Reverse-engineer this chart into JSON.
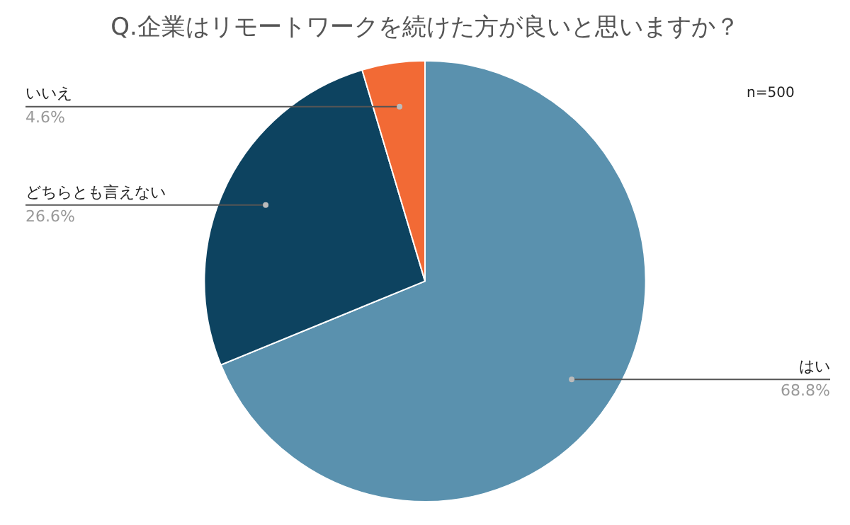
{
  "chart_data": {
    "type": "pie",
    "title": "Q.企業はリモートワークを続けた方が良いと思いますか？",
    "categories": [
      "はい",
      "どちらとも言えない",
      "いいえ"
    ],
    "values": [
      68.8,
      26.6,
      4.6
    ],
    "value_labels": [
      "68.8%",
      "26.6%",
      "4.6%"
    ],
    "colors": [
      "#5a91ae",
      "#0d4360",
      "#f26a35"
    ],
    "annotations": [
      "n=500"
    ],
    "legend": false
  }
}
